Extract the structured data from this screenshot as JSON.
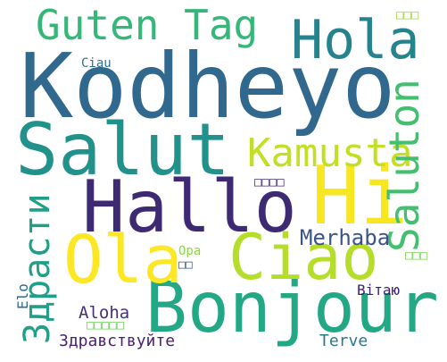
{
  "words": {
    "kodheyo": {
      "text": "Kodheyo",
      "color": "#31688e"
    },
    "salut": {
      "text": "Salut",
      "color": "#21918c"
    },
    "bonjour": {
      "text": "Bonjour",
      "color": "#22a884"
    },
    "hallo": {
      "text": "Hallo",
      "color": "#3e2a72"
    },
    "hi": {
      "text": "Hi",
      "color": "#f7e620"
    },
    "ola": {
      "text": "Ola",
      "color": "#fde725"
    },
    "ciao_large": {
      "text": "Ciao",
      "color": "#b5de2b"
    },
    "hola": {
      "text": "Hola",
      "color": "#25838e"
    },
    "guten_tag": {
      "text": "Guten Tag",
      "color": "#35b779"
    },
    "kamusta": {
      "text": "Kamusta",
      "color": "#c2df23"
    },
    "saluton": {
      "text": "Saluton",
      "color": "#44bf70"
    },
    "zdrasti": {
      "text": "Здрасти",
      "color": "#1f9f88"
    },
    "merhaba": {
      "text": "Merhaba",
      "color": "#3b528b"
    },
    "aloha": {
      "text": "Aloha",
      "color": "#472f7d"
    },
    "zdravstvuyte": {
      "text": "Здравствуйте",
      "color": "#482173"
    },
    "terve": {
      "text": "Terve",
      "color": "#2a788e"
    },
    "vitayu": {
      "text": "Вітаю",
      "color": "#3e1e6f"
    },
    "ciao_small": {
      "text": "Ciau",
      "color": "#2c728e"
    },
    "elo": {
      "text": "Elo",
      "color": "#2e6e8e"
    },
    "opa": {
      "text": "Opa",
      "color": "#8fd744"
    },
    "glyph_tofu_1": {
      "text": "□□",
      "color": "#3a548c"
    },
    "glyph_tofu_2": {
      "text": "□□□□",
      "color": "#472c7a"
    },
    "glyph_tofu_3": {
      "text": "□□□",
      "color": "#a2da37"
    },
    "glyph_tofu_4": {
      "text": "□□□",
      "color": "#7ad151"
    },
    "glyph_tofu_5": {
      "text": "□□□□□",
      "color": "#6ccd5a"
    }
  }
}
